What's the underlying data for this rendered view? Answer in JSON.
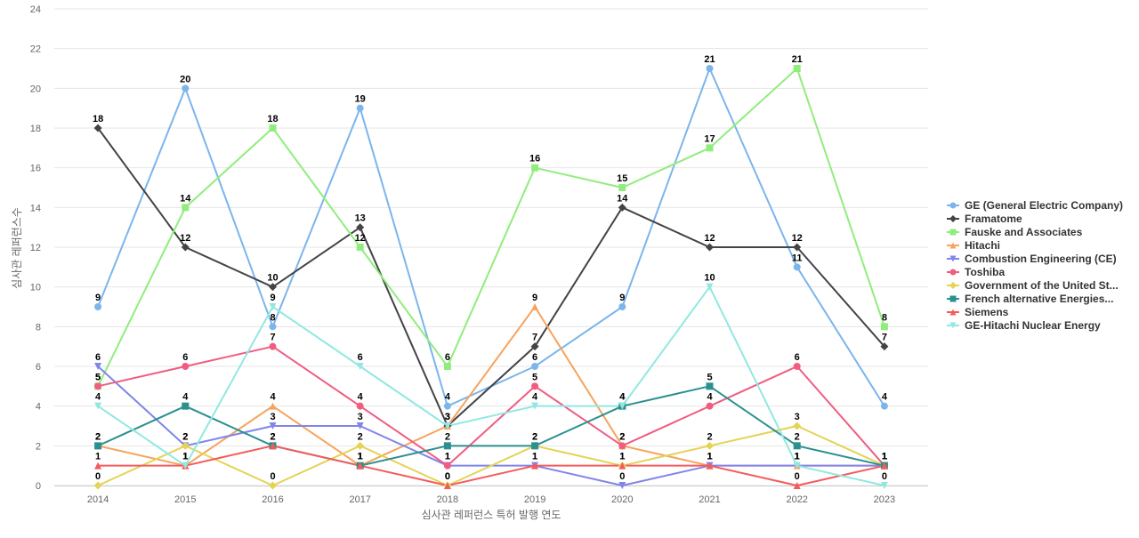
{
  "chart_data": {
    "type": "line",
    "xlabel": "심사관 레퍼런스 특허 발행 연도",
    "ylabel": "심사관 레퍼런스수",
    "x": [
      "2014",
      "2015",
      "2016",
      "2017",
      "2018",
      "2019",
      "2020",
      "2021",
      "2022",
      "2023"
    ],
    "ylim": [
      0,
      24
    ],
    "yticks": [
      0,
      2,
      4,
      6,
      8,
      10,
      12,
      14,
      16,
      18,
      20,
      22,
      24
    ],
    "grid": true,
    "legend_position": "right",
    "data_labels": true,
    "series": [
      {
        "name": "GE (General Electric Company)",
        "color": "#7cb5ec",
        "marker": "circle",
        "values": [
          9,
          20,
          8,
          19,
          4,
          6,
          9,
          21,
          11,
          4
        ]
      },
      {
        "name": "Framatome",
        "color": "#434348",
        "marker": "diamond",
        "values": [
          18,
          12,
          10,
          13,
          3,
          7,
          14,
          12,
          12,
          7
        ]
      },
      {
        "name": "Fauske and Associates",
        "color": "#90ed7d",
        "marker": "square",
        "values": [
          5,
          14,
          18,
          12,
          6,
          16,
          15,
          17,
          21,
          8
        ]
      },
      {
        "name": "Hitachi",
        "color": "#f7a35c",
        "marker": "triangle",
        "values": [
          2,
          1,
          4,
          1,
          3,
          9,
          2,
          1,
          1,
          1
        ]
      },
      {
        "name": "Combustion Engineering (CE)",
        "color": "#8085e9",
        "marker": "triangle-down",
        "values": [
          6,
          2,
          3,
          3,
          1,
          1,
          0,
          1,
          1,
          1
        ]
      },
      {
        "name": "Toshiba",
        "color": "#f15c80",
        "marker": "circle",
        "values": [
          5,
          6,
          7,
          4,
          1,
          5,
          2,
          4,
          6,
          1
        ]
      },
      {
        "name": "Government of the United St...",
        "color": "#e4d354",
        "marker": "diamond",
        "values": [
          0,
          2,
          0,
          2,
          0,
          2,
          1,
          2,
          3,
          1
        ]
      },
      {
        "name": "French alternative Energies...",
        "color": "#2b908f",
        "marker": "square",
        "values": [
          2,
          4,
          2,
          1,
          2,
          2,
          4,
          5,
          2,
          1
        ]
      },
      {
        "name": "Siemens",
        "color": "#f45b5b",
        "marker": "triangle",
        "values": [
          1,
          1,
          2,
          1,
          0,
          1,
          1,
          1,
          0,
          1
        ]
      },
      {
        "name": "GE-Hitachi Nuclear Energy",
        "color": "#91e8e1",
        "marker": "triangle-down",
        "values": [
          4,
          1,
          9,
          6,
          3,
          4,
          4,
          10,
          1,
          0
        ]
      }
    ]
  }
}
